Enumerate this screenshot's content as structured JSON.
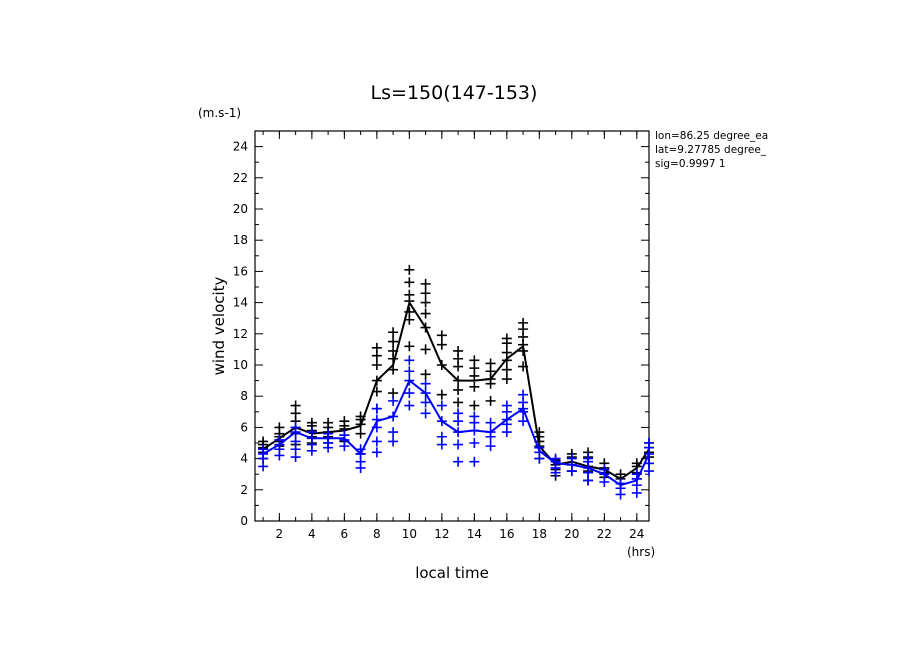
{
  "chart_data": {
    "type": "scatter",
    "title": "Ls=150(147-153)",
    "xlabel": "local time",
    "ylabel": "wind velocity",
    "x_unit": "(hrs)",
    "y_unit": "(m.s-1)",
    "xlim": [
      0.5,
      24.75
    ],
    "ylim": [
      0,
      25
    ],
    "x_ticks": [
      "2",
      "4",
      "6",
      "8",
      "10",
      "12",
      "14",
      "16",
      "18",
      "20",
      "22",
      "24"
    ],
    "y_ticks": [
      "0",
      "2",
      "4",
      "6",
      "8",
      "10",
      "12",
      "14",
      "16",
      "18",
      "20",
      "22",
      "24"
    ],
    "info_lines": [
      "lon=86.25 degree_ea",
      "lat=9.27785 degree_",
      "sig=0.9997 1"
    ],
    "colors": {
      "series_a": "#000000",
      "series_b": "#0000ff"
    },
    "grid": false,
    "series": [
      {
        "color": "#000000",
        "mean": [
          [
            1,
            4.6
          ],
          [
            2,
            5.3
          ],
          [
            3,
            6.0
          ],
          [
            4,
            5.6
          ],
          [
            5,
            5.7
          ],
          [
            6,
            5.8
          ],
          [
            7,
            6.1
          ],
          [
            8,
            9.0
          ],
          [
            9,
            10.0
          ],
          [
            10,
            14.0
          ],
          [
            11,
            12.4
          ],
          [
            12,
            10.0
          ],
          [
            13,
            9.0
          ],
          [
            14,
            9.0
          ],
          [
            15,
            9.1
          ],
          [
            16,
            10.4
          ],
          [
            17,
            11.2
          ],
          [
            18,
            4.8
          ],
          [
            19,
            3.6
          ],
          [
            20,
            3.8
          ],
          [
            21,
            3.5
          ],
          [
            22,
            3.3
          ],
          [
            23,
            2.7
          ],
          [
            24,
            3.4
          ],
          [
            24.75,
            4.6
          ]
        ],
        "samples": [
          [
            1,
            4.0
          ],
          [
            1,
            4.4
          ],
          [
            1,
            4.7
          ],
          [
            1,
            4.9
          ],
          [
            1,
            5.1
          ],
          [
            2,
            4.8
          ],
          [
            2,
            5.1
          ],
          [
            2,
            5.4
          ],
          [
            2,
            5.6
          ],
          [
            2,
            6.0
          ],
          [
            3,
            4.9
          ],
          [
            3,
            5.6
          ],
          [
            3,
            6.0
          ],
          [
            3,
            6.4
          ],
          [
            3,
            6.9
          ],
          [
            3,
            7.4
          ],
          [
            4,
            5.0
          ],
          [
            4,
            5.4
          ],
          [
            4,
            5.8
          ],
          [
            4,
            6.1
          ],
          [
            4,
            6.3
          ],
          [
            5,
            5.0
          ],
          [
            5,
            5.4
          ],
          [
            5,
            5.7
          ],
          [
            5,
            6.0
          ],
          [
            5,
            6.3
          ],
          [
            6,
            5.1
          ],
          [
            6,
            5.5
          ],
          [
            6,
            5.9
          ],
          [
            6,
            6.1
          ],
          [
            6,
            6.4
          ],
          [
            7,
            4.3
          ],
          [
            7,
            5.6
          ],
          [
            7,
            6.2
          ],
          [
            7,
            6.5
          ],
          [
            7,
            6.7
          ],
          [
            8,
            7.2
          ],
          [
            8,
            8.3
          ],
          [
            8,
            9.0
          ],
          [
            8,
            10.0
          ],
          [
            8,
            10.6
          ],
          [
            8,
            11.1
          ],
          [
            9,
            8.2
          ],
          [
            9,
            9.7
          ],
          [
            9,
            10.4
          ],
          [
            9,
            10.9
          ],
          [
            9,
            11.5
          ],
          [
            9,
            12.1
          ],
          [
            10,
            11.2
          ],
          [
            10,
            12.9
          ],
          [
            10,
            13.4
          ],
          [
            10,
            14.1
          ],
          [
            10,
            14.5
          ],
          [
            10,
            15.3
          ],
          [
            10,
            16.1
          ],
          [
            11,
            9.4
          ],
          [
            11,
            11.0
          ],
          [
            11,
            12.4
          ],
          [
            11,
            13.3
          ],
          [
            11,
            14.0
          ],
          [
            11,
            14.6
          ],
          [
            11,
            15.2
          ],
          [
            12,
            8.1
          ],
          [
            12,
            10.0
          ],
          [
            12,
            11.3
          ],
          [
            12,
            11.9
          ],
          [
            13,
            7.6
          ],
          [
            13,
            8.4
          ],
          [
            13,
            9.0
          ],
          [
            13,
            9.9
          ],
          [
            13,
            10.4
          ],
          [
            13,
            10.9
          ],
          [
            14,
            7.4
          ],
          [
            14,
            8.6
          ],
          [
            14,
            9.3
          ],
          [
            14,
            9.8
          ],
          [
            14,
            10.3
          ],
          [
            15,
            7.7
          ],
          [
            15,
            8.8
          ],
          [
            15,
            9.1
          ],
          [
            15,
            9.6
          ],
          [
            15,
            10.1
          ],
          [
            16,
            9.1
          ],
          [
            16,
            9.7
          ],
          [
            16,
            10.3
          ],
          [
            16,
            10.8
          ],
          [
            16,
            11.4
          ],
          [
            16,
            11.7
          ],
          [
            17,
            9.9
          ],
          [
            17,
            10.9
          ],
          [
            17,
            11.3
          ],
          [
            17,
            11.8
          ],
          [
            17,
            12.3
          ],
          [
            17,
            12.7
          ],
          [
            18,
            4.0
          ],
          [
            18,
            4.8
          ],
          [
            18,
            5.1
          ],
          [
            18,
            5.4
          ],
          [
            18,
            5.7
          ],
          [
            19,
            2.9
          ],
          [
            19,
            3.3
          ],
          [
            19,
            3.6
          ],
          [
            19,
            3.9
          ],
          [
            20,
            3.2
          ],
          [
            20,
            3.6
          ],
          [
            20,
            4.1
          ],
          [
            20,
            4.3
          ],
          [
            21,
            2.6
          ],
          [
            21,
            3.2
          ],
          [
            21,
            3.5
          ],
          [
            21,
            4.1
          ],
          [
            21,
            4.4
          ],
          [
            22,
            2.8
          ],
          [
            22,
            3.1
          ],
          [
            22,
            3.4
          ],
          [
            22,
            3.7
          ],
          [
            23,
            2.4
          ],
          [
            23,
            2.7
          ],
          [
            23,
            3.0
          ],
          [
            24,
            2.7
          ],
          [
            24,
            3.1
          ],
          [
            24,
            3.5
          ],
          [
            24,
            3.7
          ],
          [
            24.75,
            3.7
          ],
          [
            24.75,
            4.1
          ],
          [
            24.75,
            4.4
          ],
          [
            24.75,
            4.7
          ],
          [
            24.75,
            5.0
          ]
        ]
      },
      {
        "color": "#0000ff",
        "mean": [
          [
            1,
            4.3
          ],
          [
            2,
            4.9
          ],
          [
            3,
            5.7
          ],
          [
            4,
            5.3
          ],
          [
            5,
            5.3
          ],
          [
            6,
            5.3
          ],
          [
            7,
            4.3
          ],
          [
            8,
            6.4
          ],
          [
            9,
            6.7
          ],
          [
            10,
            9.0
          ],
          [
            11,
            8.2
          ],
          [
            12,
            6.4
          ],
          [
            13,
            5.7
          ],
          [
            14,
            5.8
          ],
          [
            15,
            5.7
          ],
          [
            16,
            6.5
          ],
          [
            17,
            7.2
          ],
          [
            18,
            4.5
          ],
          [
            19,
            3.7
          ],
          [
            20,
            3.6
          ],
          [
            21,
            3.4
          ],
          [
            22,
            3.0
          ],
          [
            23,
            2.3
          ],
          [
            24,
            2.6
          ],
          [
            24.75,
            4.3
          ]
        ],
        "samples": [
          [
            1,
            3.5
          ],
          [
            1,
            4.0
          ],
          [
            1,
            4.3
          ],
          [
            1,
            4.6
          ],
          [
            2,
            4.2
          ],
          [
            2,
            4.6
          ],
          [
            2,
            4.9
          ],
          [
            2,
            5.2
          ],
          [
            3,
            4.1
          ],
          [
            3,
            4.6
          ],
          [
            3,
            5.1
          ],
          [
            3,
            5.7
          ],
          [
            3,
            6.0
          ],
          [
            4,
            4.5
          ],
          [
            4,
            4.9
          ],
          [
            4,
            5.3
          ],
          [
            4,
            5.7
          ],
          [
            5,
            4.7
          ],
          [
            5,
            5.0
          ],
          [
            5,
            5.3
          ],
          [
            5,
            5.6
          ],
          [
            6,
            4.8
          ],
          [
            6,
            5.2
          ],
          [
            6,
            5.5
          ],
          [
            7,
            3.4
          ],
          [
            7,
            3.8
          ],
          [
            7,
            4.3
          ],
          [
            7,
            4.6
          ],
          [
            8,
            4.4
          ],
          [
            8,
            5.1
          ],
          [
            8,
            6.0
          ],
          [
            8,
            6.5
          ],
          [
            8,
            7.2
          ],
          [
            9,
            5.1
          ],
          [
            9,
            5.7
          ],
          [
            9,
            6.7
          ],
          [
            9,
            7.7
          ],
          [
            10,
            7.4
          ],
          [
            10,
            8.2
          ],
          [
            10,
            9.0
          ],
          [
            10,
            9.6
          ],
          [
            10,
            10.3
          ],
          [
            11,
            6.9
          ],
          [
            11,
            7.6
          ],
          [
            11,
            8.2
          ],
          [
            11,
            8.8
          ],
          [
            12,
            4.9
          ],
          [
            12,
            5.4
          ],
          [
            12,
            6.4
          ],
          [
            12,
            7.4
          ],
          [
            13,
            3.8
          ],
          [
            13,
            4.9
          ],
          [
            13,
            5.7
          ],
          [
            13,
            6.4
          ],
          [
            13,
            6.9
          ],
          [
            14,
            3.8
          ],
          [
            14,
            5.0
          ],
          [
            14,
            5.8
          ],
          [
            14,
            6.3
          ],
          [
            14,
            6.7
          ],
          [
            15,
            4.8
          ],
          [
            15,
            5.4
          ],
          [
            15,
            5.7
          ],
          [
            15,
            6.3
          ],
          [
            16,
            5.7
          ],
          [
            16,
            6.2
          ],
          [
            16,
            6.5
          ],
          [
            16,
            7.0
          ],
          [
            16,
            7.4
          ],
          [
            17,
            6.4
          ],
          [
            17,
            7.0
          ],
          [
            17,
            7.2
          ],
          [
            17,
            7.6
          ],
          [
            17,
            8.1
          ],
          [
            18,
            4.0
          ],
          [
            18,
            4.4
          ],
          [
            18,
            4.7
          ],
          [
            19,
            3.1
          ],
          [
            19,
            3.4
          ],
          [
            19,
            3.8
          ],
          [
            19,
            4.0
          ],
          [
            20,
            3.2
          ],
          [
            20,
            3.6
          ],
          [
            20,
            4.0
          ],
          [
            21,
            2.6
          ],
          [
            21,
            3.1
          ],
          [
            21,
            3.4
          ],
          [
            21,
            3.8
          ],
          [
            21,
            4.0
          ],
          [
            22,
            2.5
          ],
          [
            22,
            3.0
          ],
          [
            22,
            3.3
          ],
          [
            23,
            1.7
          ],
          [
            23,
            2.1
          ],
          [
            23,
            2.4
          ],
          [
            24,
            1.8
          ],
          [
            24,
            2.3
          ],
          [
            24,
            2.7
          ],
          [
            24,
            3.0
          ],
          [
            24.75,
            3.2
          ],
          [
            24.75,
            3.7
          ],
          [
            24.75,
            4.3
          ],
          [
            24.75,
            4.7
          ],
          [
            24.75,
            5.0
          ]
        ]
      }
    ]
  }
}
